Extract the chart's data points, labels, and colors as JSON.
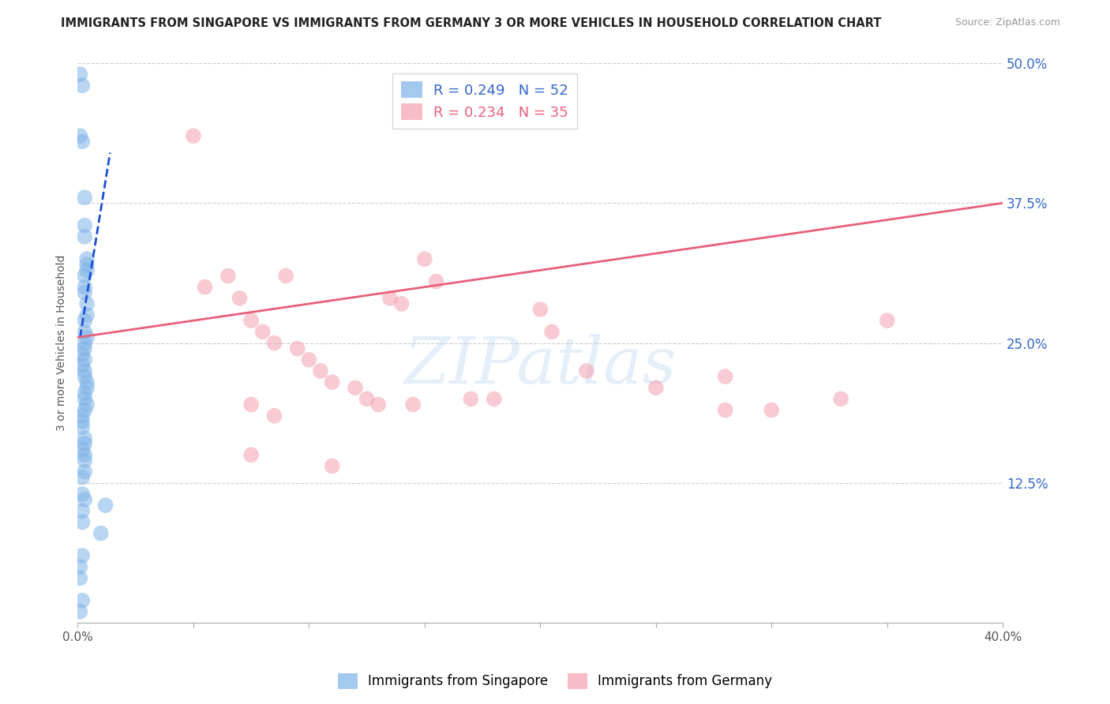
{
  "title": "IMMIGRANTS FROM SINGAPORE VS IMMIGRANTS FROM GERMANY 3 OR MORE VEHICLES IN HOUSEHOLD CORRELATION CHART",
  "source": "Source: ZipAtlas.com",
  "ylabel": "3 or more Vehicles in Household",
  "xlim": [
    0.0,
    0.4
  ],
  "ylim": [
    0.0,
    0.5
  ],
  "xticks": [
    0.0,
    0.05,
    0.1,
    0.15,
    0.2,
    0.25,
    0.3,
    0.35,
    0.4
  ],
  "ytick_positions": [
    0.0,
    0.125,
    0.25,
    0.375,
    0.5
  ],
  "yticklabels_right": [
    "",
    "12.5%",
    "25.0%",
    "37.5%",
    "50.0%"
  ],
  "legend1_R": "0.249",
  "legend1_N": "52",
  "legend2_R": "0.234",
  "legend2_N": "35",
  "blue_color": "#7EB3E8",
  "pink_color": "#F4A0B0",
  "blue_line_color": "#1B4FD8",
  "pink_line_color": "#E8607A",
  "watermark_text": "ZIPatlas",
  "singapore_x": [
    0.001,
    0.002,
    0.001,
    0.002,
    0.003,
    0.003,
    0.003,
    0.004,
    0.004,
    0.004,
    0.003,
    0.003,
    0.003,
    0.004,
    0.004,
    0.003,
    0.003,
    0.004,
    0.003,
    0.003,
    0.002,
    0.003,
    0.002,
    0.003,
    0.003,
    0.004,
    0.004,
    0.003,
    0.003,
    0.004,
    0.003,
    0.002,
    0.002,
    0.002,
    0.003,
    0.003,
    0.002,
    0.003,
    0.003,
    0.003,
    0.002,
    0.002,
    0.003,
    0.002,
    0.002,
    0.002,
    0.001,
    0.001,
    0.002,
    0.001,
    0.012,
    0.01
  ],
  "singapore_y": [
    0.49,
    0.48,
    0.435,
    0.43,
    0.38,
    0.355,
    0.345,
    0.325,
    0.32,
    0.315,
    0.31,
    0.3,
    0.295,
    0.285,
    0.275,
    0.27,
    0.26,
    0.255,
    0.25,
    0.245,
    0.24,
    0.235,
    0.23,
    0.225,
    0.22,
    0.215,
    0.21,
    0.205,
    0.2,
    0.195,
    0.19,
    0.185,
    0.18,
    0.175,
    0.165,
    0.16,
    0.155,
    0.15,
    0.145,
    0.135,
    0.13,
    0.115,
    0.11,
    0.1,
    0.09,
    0.06,
    0.05,
    0.04,
    0.02,
    0.01,
    0.105,
    0.08
  ],
  "germany_x": [
    0.05,
    0.055,
    0.065,
    0.07,
    0.075,
    0.08,
    0.085,
    0.09,
    0.095,
    0.1,
    0.105,
    0.11,
    0.12,
    0.125,
    0.13,
    0.135,
    0.14,
    0.145,
    0.15,
    0.155,
    0.17,
    0.18,
    0.2,
    0.205,
    0.22,
    0.25,
    0.28,
    0.3,
    0.33,
    0.35,
    0.075,
    0.085,
    0.075,
    0.28,
    0.11
  ],
  "germany_y": [
    0.435,
    0.3,
    0.31,
    0.29,
    0.27,
    0.26,
    0.25,
    0.31,
    0.245,
    0.235,
    0.225,
    0.215,
    0.21,
    0.2,
    0.195,
    0.29,
    0.285,
    0.195,
    0.325,
    0.305,
    0.2,
    0.2,
    0.28,
    0.26,
    0.225,
    0.21,
    0.19,
    0.19,
    0.2,
    0.27,
    0.195,
    0.185,
    0.15,
    0.22,
    0.14
  ],
  "sg_line_x": [
    0.001,
    0.014
  ],
  "sg_line_y": [
    0.255,
    0.42
  ],
  "de_line_x": [
    0.0,
    0.4
  ],
  "de_line_y": [
    0.255,
    0.375
  ]
}
